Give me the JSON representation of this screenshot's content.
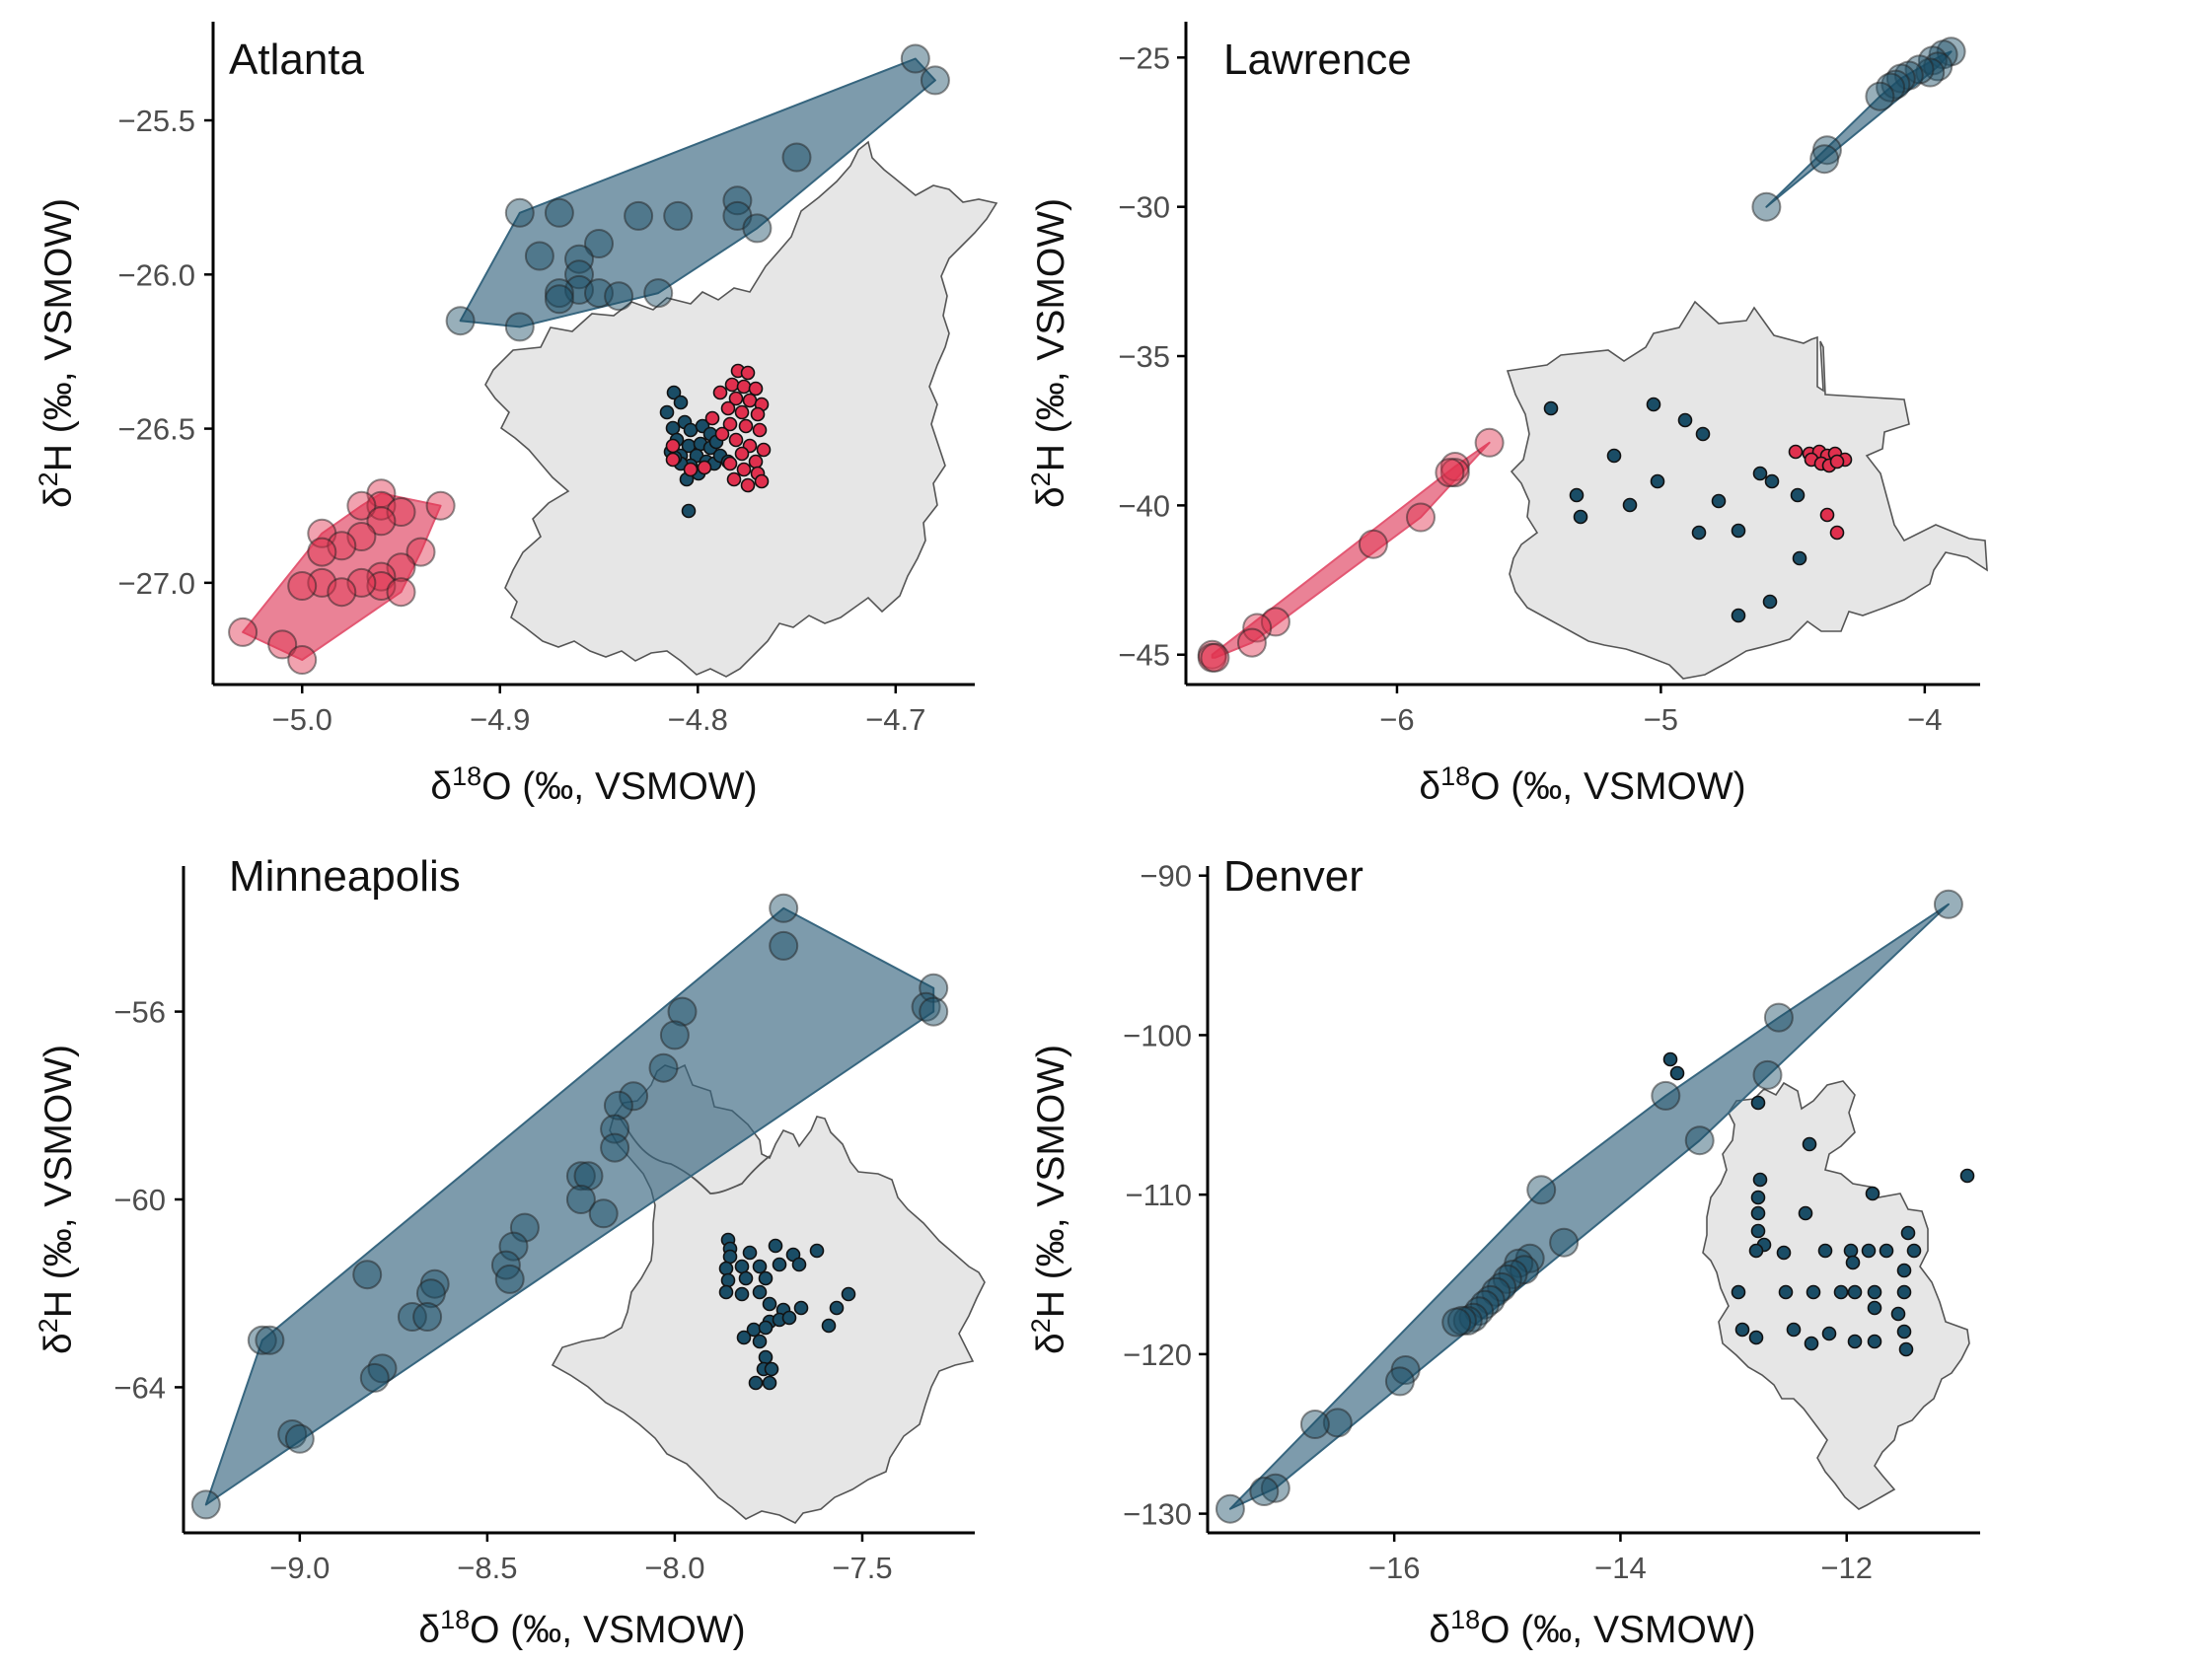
{
  "colors": {
    "blue": "#1a4d66",
    "red": "#e0304e",
    "hull_blue": "#37667f",
    "hull_red": "#e35873",
    "city_fill": "#e6e6e6"
  },
  "chart_data": [
    {
      "type": "scatter",
      "title": "Atlanta",
      "xlabel": "δ18O (‰, VSMOW)",
      "ylabel": "δ2H (‰, VSMOW)",
      "xlim": [
        -5.045,
        -4.66
      ],
      "ylim": [
        -27.33,
        -25.18
      ],
      "xticks": [
        -5.0,
        -4.9,
        -4.8,
        -4.7
      ],
      "xtick_labels": [
        "−5.0",
        "−4.9",
        "−4.8",
        "−4.7"
      ],
      "yticks": [
        -25.5,
        -26.0,
        -26.5,
        -27.0
      ],
      "ytick_labels": [
        "−25.5",
        "−26.0",
        "−26.5",
        "−27.0"
      ],
      "series": [
        {
          "color": "blue",
          "points": [
            [
              -4.69,
              -25.3
            ],
            [
              -4.68,
              -25.37
            ],
            [
              -4.75,
              -25.62
            ],
            [
              -4.89,
              -25.8
            ],
            [
              -4.87,
              -25.8
            ],
            [
              -4.83,
              -25.81
            ],
            [
              -4.81,
              -25.81
            ],
            [
              -4.78,
              -25.76
            ],
            [
              -4.78,
              -25.81
            ],
            [
              -4.77,
              -25.85
            ],
            [
              -4.85,
              -25.9
            ],
            [
              -4.86,
              -25.95
            ],
            [
              -4.88,
              -25.94
            ],
            [
              -4.86,
              -26.0
            ],
            [
              -4.86,
              -26.05
            ],
            [
              -4.87,
              -26.06
            ],
            [
              -4.87,
              -26.08
            ],
            [
              -4.85,
              -26.06
            ],
            [
              -4.84,
              -26.07
            ],
            [
              -4.82,
              -26.06
            ],
            [
              -4.92,
              -26.15
            ],
            [
              -4.89,
              -26.17
            ]
          ]
        },
        {
          "color": "red",
          "points": [
            [
              -4.96,
              -26.71
            ],
            [
              -4.96,
              -26.75
            ],
            [
              -4.97,
              -26.75
            ],
            [
              -4.95,
              -26.77
            ],
            [
              -4.93,
              -26.75
            ],
            [
              -4.96,
              -26.8
            ],
            [
              -4.99,
              -26.84
            ],
            [
              -4.97,
              -26.85
            ],
            [
              -4.94,
              -26.9
            ],
            [
              -4.98,
              -26.88
            ],
            [
              -4.99,
              -26.9
            ],
            [
              -4.95,
              -26.95
            ],
            [
              -4.96,
              -26.98
            ],
            [
              -4.96,
              -27.01
            ],
            [
              -4.99,
              -27.0
            ],
            [
              -4.97,
              -27.0
            ],
            [
              -4.95,
              -27.03
            ],
            [
              -4.98,
              -27.03
            ],
            [
              -5.0,
              -27.01
            ],
            [
              -5.03,
              -27.16
            ],
            [
              -5.01,
              -27.2
            ],
            [
              -5.0,
              -27.25
            ]
          ]
        }
      ]
    },
    {
      "type": "scatter",
      "title": "Lawrence",
      "xlabel": "δ18O (‰, VSMOW)",
      "ylabel": "δ2H (‰, VSMOW)",
      "xlim": [
        -6.8,
        -3.79
      ],
      "ylim": [
        -46.0,
        -23.8
      ],
      "xticks": [
        -6,
        -5,
        -4
      ],
      "xtick_labels": [
        "−6",
        "−5",
        "−4"
      ],
      "yticks": [
        -25,
        -30,
        -35,
        -40,
        -45
      ],
      "ytick_labels": [
        "−25",
        "−30",
        "−35",
        "−40",
        "−45"
      ],
      "series": [
        {
          "color": "blue",
          "points": [
            [
              -3.9,
              -24.8
            ],
            [
              -3.93,
              -24.9
            ],
            [
              -3.97,
              -25.1
            ],
            [
              -3.95,
              -25.3
            ],
            [
              -3.98,
              -25.5
            ],
            [
              -4.02,
              -25.4
            ],
            [
              -4.06,
              -25.6
            ],
            [
              -4.09,
              -25.7
            ],
            [
              -4.11,
              -25.9
            ],
            [
              -4.13,
              -26.0
            ],
            [
              -4.17,
              -26.3
            ],
            [
              -4.37,
              -28.1
            ],
            [
              -4.38,
              -28.4
            ],
            [
              -4.6,
              -30.0
            ]
          ]
        },
        {
          "color": "red",
          "points": [
            [
              -5.65,
              -37.9
            ],
            [
              -5.78,
              -38.7
            ],
            [
              -5.78,
              -38.9
            ],
            [
              -5.8,
              -38.9
            ],
            [
              -5.91,
              -40.4
            ],
            [
              -6.09,
              -41.3
            ],
            [
              -6.46,
              -43.9
            ],
            [
              -6.53,
              -44.1
            ],
            [
              -6.55,
              -44.6
            ],
            [
              -6.7,
              -45.0
            ],
            [
              -6.7,
              -45.1
            ],
            [
              -6.69,
              -45.1
            ]
          ]
        }
      ]
    },
    {
      "type": "scatter",
      "title": "Minneapolis",
      "xlabel": "δ18O (‰, VSMOW)",
      "ylabel": "δ2H (‰, VSMOW)",
      "xlim": [
        -9.31,
        -7.2
      ],
      "ylim": [
        -67.1,
        -52.9
      ],
      "xticks": [
        -9.0,
        -8.5,
        -8.0,
        -7.5
      ],
      "xtick_labels": [
        "−9.0",
        "−8.5",
        "−8.0",
        "−7.5"
      ],
      "yticks": [
        -56,
        -60,
        -64
      ],
      "ytick_labels": [
        "−56",
        "−60",
        "−64"
      ],
      "series": [
        {
          "color": "blue",
          "points": [
            [
              -7.71,
              -53.8
            ],
            [
              -7.71,
              -54.6
            ],
            [
              -7.31,
              -55.5
            ],
            [
              -7.33,
              -55.9
            ],
            [
              -7.31,
              -56.0
            ],
            [
              -7.98,
              -56.0
            ],
            [
              -8.0,
              -56.5
            ],
            [
              -8.03,
              -57.2
            ],
            [
              -8.11,
              -57.8
            ],
            [
              -8.15,
              -58.0
            ],
            [
              -8.16,
              -58.5
            ],
            [
              -8.16,
              -58.9
            ],
            [
              -8.25,
              -59.5
            ],
            [
              -8.23,
              -59.5
            ],
            [
              -8.25,
              -60.0
            ],
            [
              -8.19,
              -60.3
            ],
            [
              -8.4,
              -60.6
            ],
            [
              -8.43,
              -61.0
            ],
            [
              -8.45,
              -61.4
            ],
            [
              -8.44,
              -61.7
            ],
            [
              -8.82,
              -61.6
            ],
            [
              -8.64,
              -61.8
            ],
            [
              -8.65,
              -62.0
            ],
            [
              -8.7,
              -62.5
            ],
            [
              -8.66,
              -62.5
            ],
            [
              -9.1,
              -63.0
            ],
            [
              -9.08,
              -63.0
            ],
            [
              -8.78,
              -63.6
            ],
            [
              -8.8,
              -63.8
            ],
            [
              -9.02,
              -65.0
            ],
            [
              -9.0,
              -65.1
            ],
            [
              -9.25,
              -66.5
            ]
          ]
        }
      ]
    },
    {
      "type": "scatter",
      "title": "Denver",
      "xlabel": "δ18O (‰, VSMOW)",
      "ylabel": "δ2H (‰, VSMOW)",
      "xlim": [
        -17.65,
        -10.82
      ],
      "ylim": [
        -131.2,
        -89.4
      ],
      "xticks": [
        -16,
        -14,
        -12
      ],
      "xtick_labels": [
        "−16",
        "−14",
        "−12"
      ],
      "yticks": [
        -90,
        -100,
        -110,
        -120,
        -130
      ],
      "ytick_labels": [
        "−90",
        "−100",
        "−110",
        "−120",
        "−130"
      ],
      "series": [
        {
          "color": "blue",
          "points": [
            [
              -11.1,
              -91.8
            ],
            [
              -12.6,
              -98.9
            ],
            [
              -12.7,
              -102.5
            ],
            [
              -13.6,
              -103.8
            ],
            [
              -13.3,
              -106.6
            ],
            [
              -14.7,
              -109.7
            ],
            [
              -14.5,
              -113.0
            ],
            [
              -14.8,
              -114.0
            ],
            [
              -14.9,
              -114.3
            ],
            [
              -14.85,
              -114.7
            ],
            [
              -14.95,
              -115.0
            ],
            [
              -15.0,
              -115.3
            ],
            [
              -15.05,
              -115.8
            ],
            [
              -15.1,
              -116.1
            ],
            [
              -15.15,
              -116.6
            ],
            [
              -15.2,
              -116.9
            ],
            [
              -15.25,
              -117.3
            ],
            [
              -15.3,
              -117.7
            ],
            [
              -15.35,
              -117.9
            ],
            [
              -15.4,
              -117.9
            ],
            [
              -15.45,
              -118.0
            ],
            [
              -15.9,
              -121.0
            ],
            [
              -15.95,
              -121.7
            ],
            [
              -16.5,
              -124.3
            ],
            [
              -16.7,
              -124.4
            ],
            [
              -17.05,
              -128.4
            ],
            [
              -17.15,
              -128.6
            ],
            [
              -17.45,
              -129.7
            ]
          ]
        }
      ]
    }
  ]
}
